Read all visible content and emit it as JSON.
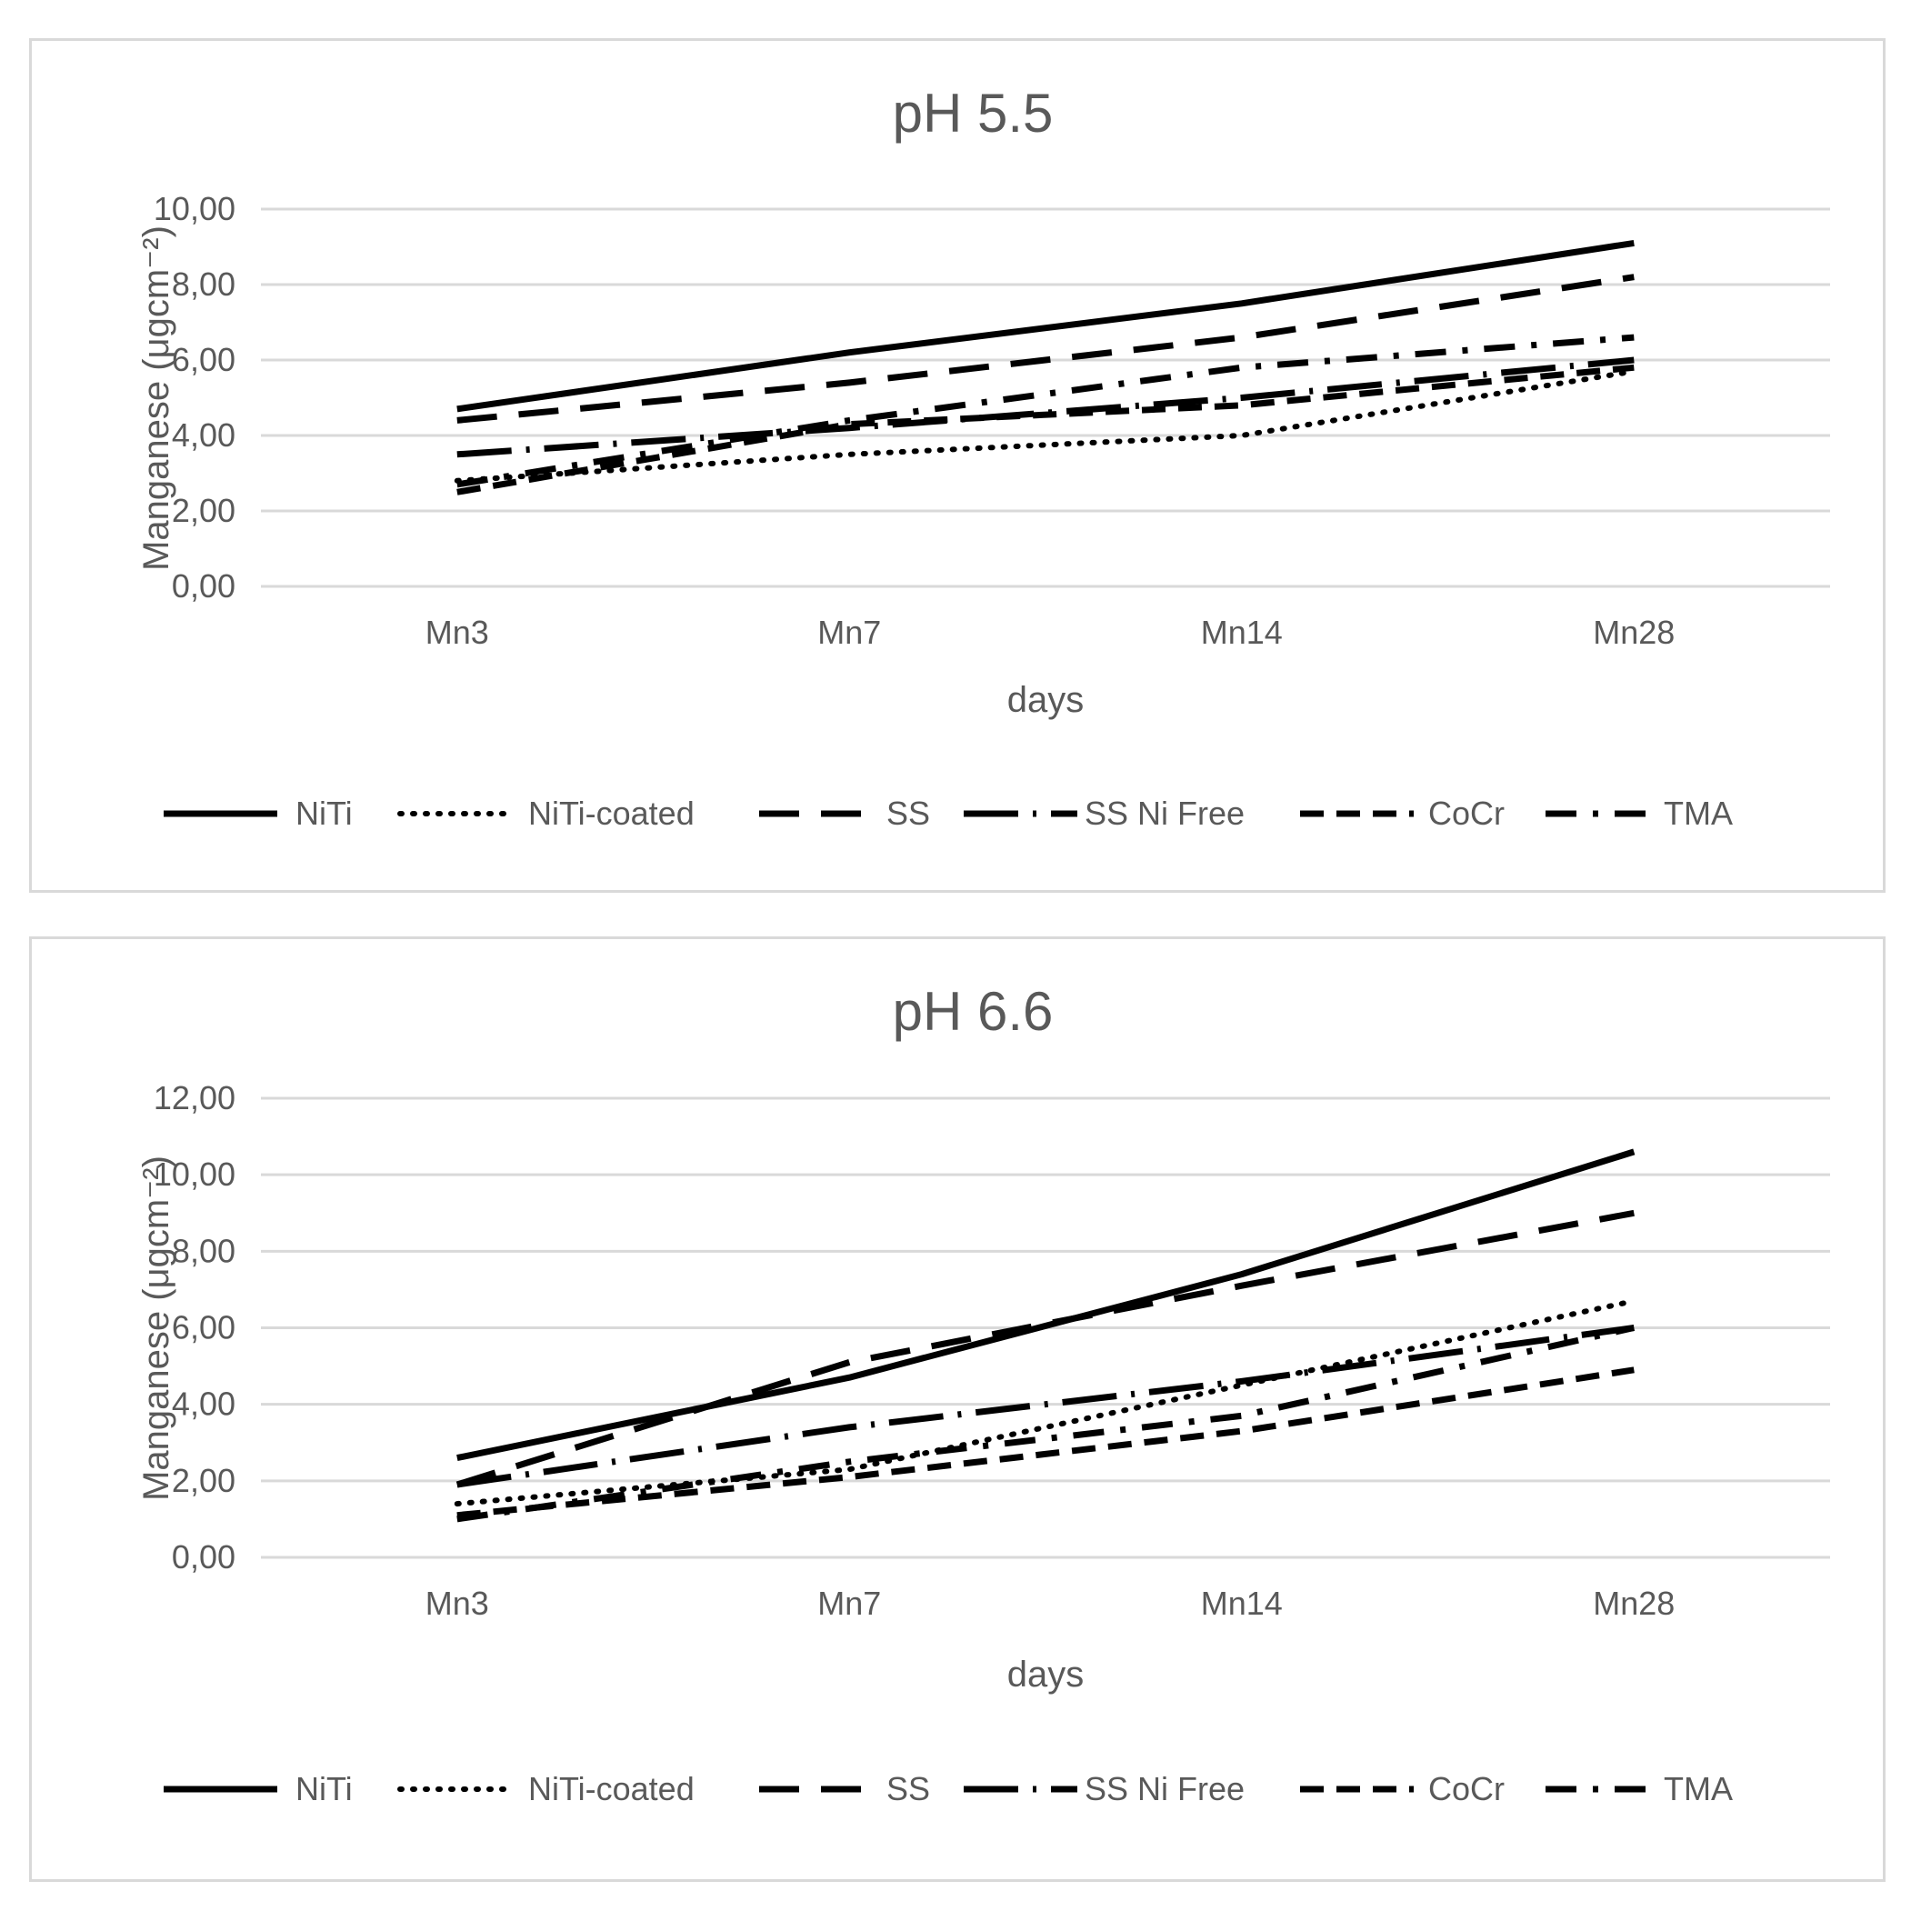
{
  "chart_data": [
    {
      "type": "line",
      "title": "pH 5.5",
      "xlabel": "days",
      "ylabel": "Manganese (μgcm⁻²)",
      "categories": [
        "Mn3",
        "Mn7",
        "Mn14",
        "Mn28"
      ],
      "ylim": [
        0,
        10
      ],
      "yticks": [
        "0,00",
        "2,00",
        "4,00",
        "6,00",
        "8,00",
        "10,00"
      ],
      "grid": true,
      "legend_position": "bottom",
      "series": [
        {
          "name": "NiTi",
          "style": "solid",
          "values": [
            4.7,
            6.2,
            7.5,
            9.1
          ]
        },
        {
          "name": "NiTi-coated",
          "style": "dotted",
          "values": [
            2.8,
            3.5,
            4.0,
            5.7
          ]
        },
        {
          "name": "SS",
          "style": "dashed",
          "values": [
            4.4,
            5.4,
            6.6,
            8.2
          ]
        },
        {
          "name": "SS Ni Free",
          "style": "longdashdot",
          "values": [
            3.5,
            4.2,
            5.0,
            6.0
          ]
        },
        {
          "name": "CoCr",
          "style": "shortdash",
          "values": [
            2.5,
            4.3,
            4.8,
            5.8
          ]
        },
        {
          "name": "TMA",
          "style": "dashdot",
          "values": [
            2.7,
            4.4,
            5.8,
            6.6
          ]
        }
      ]
    },
    {
      "type": "line",
      "title": "pH 6.6",
      "xlabel": "days",
      "ylabel": "Manganese (μgcm⁻²)",
      "categories": [
        "Mn3",
        "Mn7",
        "Mn14",
        "Mn28"
      ],
      "ylim": [
        0,
        12
      ],
      "yticks": [
        "0,00",
        "2,00",
        "4,00",
        "6,00",
        "8,00",
        "10,00",
        "12,00"
      ],
      "grid": true,
      "legend_position": "bottom",
      "series": [
        {
          "name": "NiTi",
          "style": "solid",
          "values": [
            2.6,
            4.7,
            7.4,
            10.6
          ]
        },
        {
          "name": "NiTi-coated",
          "style": "dotted",
          "values": [
            1.4,
            2.3,
            4.5,
            6.7
          ]
        },
        {
          "name": "SS",
          "style": "dashed",
          "values": [
            1.9,
            5.1,
            7.1,
            9.0
          ]
        },
        {
          "name": "SS Ni Free",
          "style": "longdashdot",
          "values": [
            1.9,
            3.4,
            4.6,
            6.0
          ]
        },
        {
          "name": "CoCr",
          "style": "shortdash",
          "values": [
            1.1,
            2.1,
            3.3,
            4.9
          ]
        },
        {
          "name": "TMA",
          "style": "dashdot",
          "values": [
            1.0,
            2.5,
            3.7,
            6.0
          ]
        }
      ]
    }
  ]
}
